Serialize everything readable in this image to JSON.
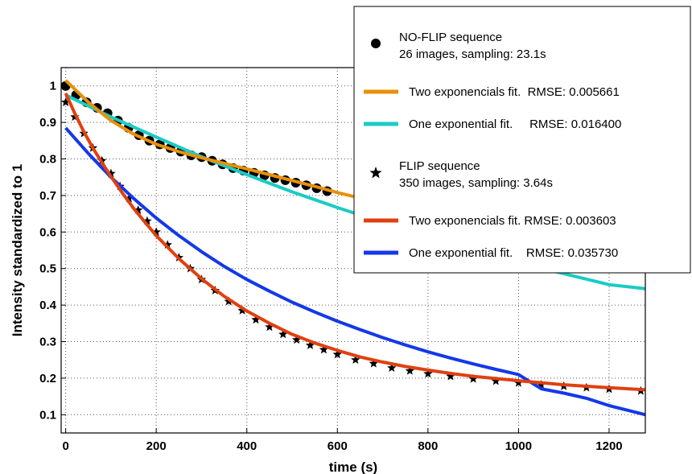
{
  "chart_data": {
    "type": "line",
    "xlabel": "time (s)",
    "ylabel": "Intensity standardized to 1",
    "xlim": [
      -10,
      1280
    ],
    "ylim": [
      0.05,
      1.05
    ],
    "xticks": [
      0,
      200,
      400,
      600,
      800,
      1000,
      1200
    ],
    "yticks": [
      0.1,
      0.2,
      0.3,
      0.4,
      0.5,
      0.6,
      0.7,
      0.8,
      0.9,
      1
    ],
    "grid": true,
    "legend_position": "top-right",
    "series": [
      {
        "kind": "markers",
        "marker": "circle",
        "color": "#000000",
        "legend_line1": "NO-FLIP sequence",
        "legend_line2": "26 images, sampling: 23.1s",
        "x": [
          0,
          23.1,
          46.2,
          69.3,
          92.4,
          115.5,
          138.6,
          161.7,
          184.8,
          207.9,
          231,
          254.1,
          277.2,
          300.3,
          323.4,
          346.5,
          369.6,
          392.7,
          415.8,
          438.9,
          462,
          485.1,
          508.2,
          531.3,
          554.4,
          577.5
        ],
        "y": [
          1.0,
          0.975,
          0.955,
          0.94,
          0.925,
          0.905,
          0.885,
          0.865,
          0.85,
          0.84,
          0.83,
          0.82,
          0.81,
          0.805,
          0.795,
          0.785,
          0.775,
          0.768,
          0.762,
          0.755,
          0.748,
          0.742,
          0.735,
          0.728,
          0.72,
          0.712
        ]
      },
      {
        "kind": "line",
        "color": "#E8900A",
        "legend_label": "Two exponencials fit.  RMSE: 0.005661",
        "x": [
          0,
          50,
          100,
          150,
          200,
          250,
          300,
          350,
          400,
          450,
          500,
          550,
          600,
          650,
          700
        ],
        "y": [
          1.015,
          0.955,
          0.905,
          0.868,
          0.84,
          0.82,
          0.803,
          0.788,
          0.773,
          0.757,
          0.741,
          0.725,
          0.708,
          0.693,
          0.678
        ]
      },
      {
        "kind": "line",
        "color": "#1ACCC4",
        "legend_label": "One exponential fit.     RMSE: 0.016400",
        "x": [
          0,
          100,
          200,
          300,
          400,
          500,
          600,
          700,
          800,
          900,
          1000,
          1100,
          1200,
          1280
        ],
        "y": [
          0.975,
          0.915,
          0.86,
          0.806,
          0.757,
          0.71,
          0.667,
          0.626,
          0.587,
          0.551,
          0.517,
          0.486,
          0.456,
          0.445
        ]
      },
      {
        "kind": "markers",
        "marker": "star",
        "color": "#000000",
        "legend_line1": "FLIP sequence",
        "legend_line2": "350 images, sampling: 3.64s",
        "x": [
          0,
          20,
          40,
          60,
          80,
          100,
          120,
          140,
          160,
          180,
          200,
          225,
          250,
          275,
          300,
          330,
          360,
          390,
          420,
          450,
          480,
          510,
          540,
          570,
          600,
          640,
          680,
          720,
          760,
          800,
          850,
          900,
          950,
          1000,
          1050,
          1100,
          1150,
          1200,
          1270
        ],
        "y": [
          0.955,
          0.915,
          0.87,
          0.83,
          0.795,
          0.76,
          0.725,
          0.692,
          0.66,
          0.63,
          0.6,
          0.565,
          0.53,
          0.5,
          0.47,
          0.44,
          0.41,
          0.385,
          0.36,
          0.34,
          0.32,
          0.305,
          0.29,
          0.278,
          0.265,
          0.25,
          0.24,
          0.228,
          0.22,
          0.212,
          0.205,
          0.198,
          0.192,
          0.187,
          0.182,
          0.178,
          0.174,
          0.17,
          0.165
        ]
      },
      {
        "kind": "line",
        "color": "#E04010",
        "legend_label": "Two exponencials fit. RMSE: 0.003603",
        "x": [
          0,
          20,
          40,
          60,
          80,
          100,
          125,
          150,
          175,
          200,
          250,
          300,
          350,
          400,
          450,
          500,
          550,
          600,
          650,
          700,
          750,
          800,
          850,
          900,
          1000,
          1100,
          1200,
          1280
        ],
        "y": [
          0.98,
          0.925,
          0.875,
          0.83,
          0.79,
          0.752,
          0.707,
          0.665,
          0.627,
          0.59,
          0.527,
          0.472,
          0.424,
          0.384,
          0.35,
          0.32,
          0.296,
          0.276,
          0.258,
          0.244,
          0.232,
          0.222,
          0.213,
          0.205,
          0.193,
          0.182,
          0.174,
          0.168
        ]
      },
      {
        "kind": "line",
        "color": "#1438E8",
        "legend_label": "One exponential fit.    RMSE: 0.035730",
        "x": [
          0,
          50,
          100,
          150,
          200,
          250,
          300,
          350,
          400,
          450,
          500,
          550,
          600,
          650,
          700,
          750,
          800,
          850,
          900,
          950,
          1000,
          1050,
          1100,
          1150,
          1200,
          1280
        ],
        "y": [
          0.885,
          0.815,
          0.75,
          0.692,
          0.638,
          0.59,
          0.546,
          0.506,
          0.47,
          0.438,
          0.408,
          0.381,
          0.356,
          0.333,
          0.311,
          0.291,
          0.272,
          0.255,
          0.239,
          0.224,
          0.21,
          0.171,
          0.159,
          0.145,
          0.125,
          0.1
        ]
      }
    ]
  }
}
